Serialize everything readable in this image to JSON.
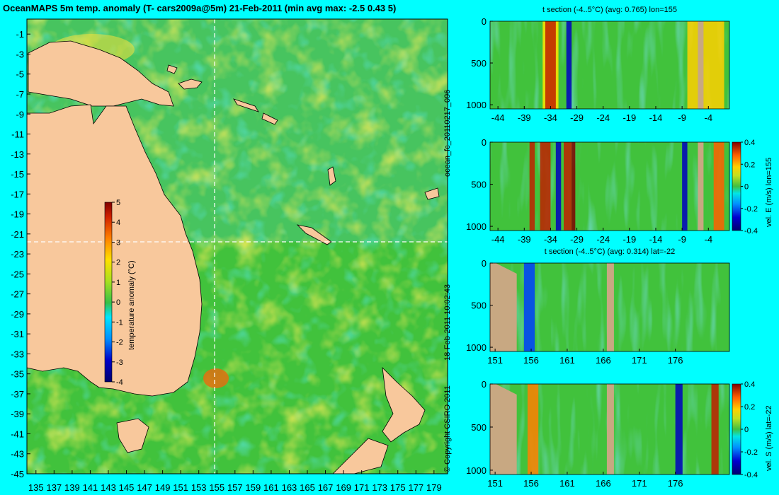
{
  "main_title": "OceanMAPS 5m temp. anomaly (T- cars2009a@5m) 21-Feb-2011 (min avg max: -2.5 0.43 5)",
  "side_labels": {
    "run_id": "ocean_fc_20110217_096",
    "run_time": "18-Feb-2011 10:02:43",
    "copyright": "© Copyright CSIRO 2011"
  },
  "colors": {
    "background": "#00ffff",
    "ocean_base": "#41c23c",
    "land": "#f8c89c",
    "section_land": "#c8a882",
    "crosshair": "#ffffff"
  },
  "chart_data": [
    {
      "type": "heatmap",
      "title": "OceanMAPS 5m temp. anomaly (T- cars2009a@5m) 21-Feb-2011 (min avg max: -2.5 0.43 5)",
      "xlabel": "",
      "ylabel": "",
      "x_ticks": [
        "135",
        "137",
        "139",
        "141",
        "143",
        "145",
        "147",
        "149",
        "151",
        "153",
        "155",
        "157",
        "159",
        "161",
        "163",
        "165",
        "167",
        "169",
        "171",
        "173",
        "175",
        "177",
        "179"
      ],
      "y_ticks": [
        "-1",
        "-3",
        "-5",
        "-7",
        "-9",
        "-11",
        "-13",
        "-15",
        "-17",
        "-19",
        "-21",
        "-23",
        "-25",
        "-27",
        "-29",
        "-31",
        "-33",
        "-35",
        "-37",
        "-39",
        "-41",
        "-43",
        "-45"
      ],
      "xlim": [
        134,
        180.5
      ],
      "ylim": [
        -45,
        0.5
      ],
      "colorbar": {
        "label": "temperature anomaly (°C)",
        "ticks": [
          "5",
          "4",
          "3",
          "2",
          "1",
          "0",
          "-1",
          "-2",
          "-3",
          "-4"
        ],
        "range": [
          -4,
          5
        ]
      },
      "crosshair": {
        "lon": 155,
        "lat": -22
      }
    },
    {
      "type": "heatmap",
      "title": "t section (-4..5°C) (avg: 0.765) lon=155",
      "x_ticks": [
        "-44",
        "-39",
        "-34",
        "-29",
        "-24",
        "-19",
        "-14",
        "-9",
        "-4"
      ],
      "y_ticks": [
        "0",
        "500",
        "1000"
      ],
      "xlim": [
        -45.5,
        0
      ],
      "ylim": [
        1050,
        0
      ]
    },
    {
      "type": "heatmap",
      "title": "",
      "x_ticks": [
        "-44",
        "-39",
        "-34",
        "-29",
        "-24",
        "-19",
        "-14",
        "-9",
        "-4"
      ],
      "y_ticks": [
        "0",
        "500",
        "1000"
      ],
      "xlim": [
        -45.5,
        0
      ],
      "ylim": [
        1050,
        0
      ],
      "colorbar": {
        "label": "vel. E (m/s) lon=155",
        "ticks": [
          "0.4",
          "0.2",
          "0",
          "-0.2",
          "-0.4"
        ],
        "range": [
          -0.4,
          0.4
        ]
      }
    },
    {
      "type": "heatmap",
      "title": "t section (-4..5°C) (avg: 0.314) lat=-22",
      "x_ticks": [
        "151",
        "156",
        "161",
        "166",
        "171",
        "176"
      ],
      "y_ticks": [
        "0",
        "500",
        "1000"
      ],
      "xlim": [
        150.3,
        183.5
      ],
      "ylim": [
        1050,
        0
      ]
    },
    {
      "type": "heatmap",
      "title": "",
      "x_ticks": [
        "151",
        "156",
        "161",
        "166",
        "171",
        "176"
      ],
      "y_ticks": [
        "0",
        "500",
        "1000"
      ],
      "xlim": [
        150.3,
        183.5
      ],
      "ylim": [
        1050,
        0
      ],
      "colorbar": {
        "label": "vel. S (m/s) lat=-22",
        "ticks": [
          "0.4",
          "0.2",
          "0",
          "-0.2",
          "-0.4"
        ],
        "range": [
          -0.4,
          0.4
        ]
      }
    }
  ]
}
